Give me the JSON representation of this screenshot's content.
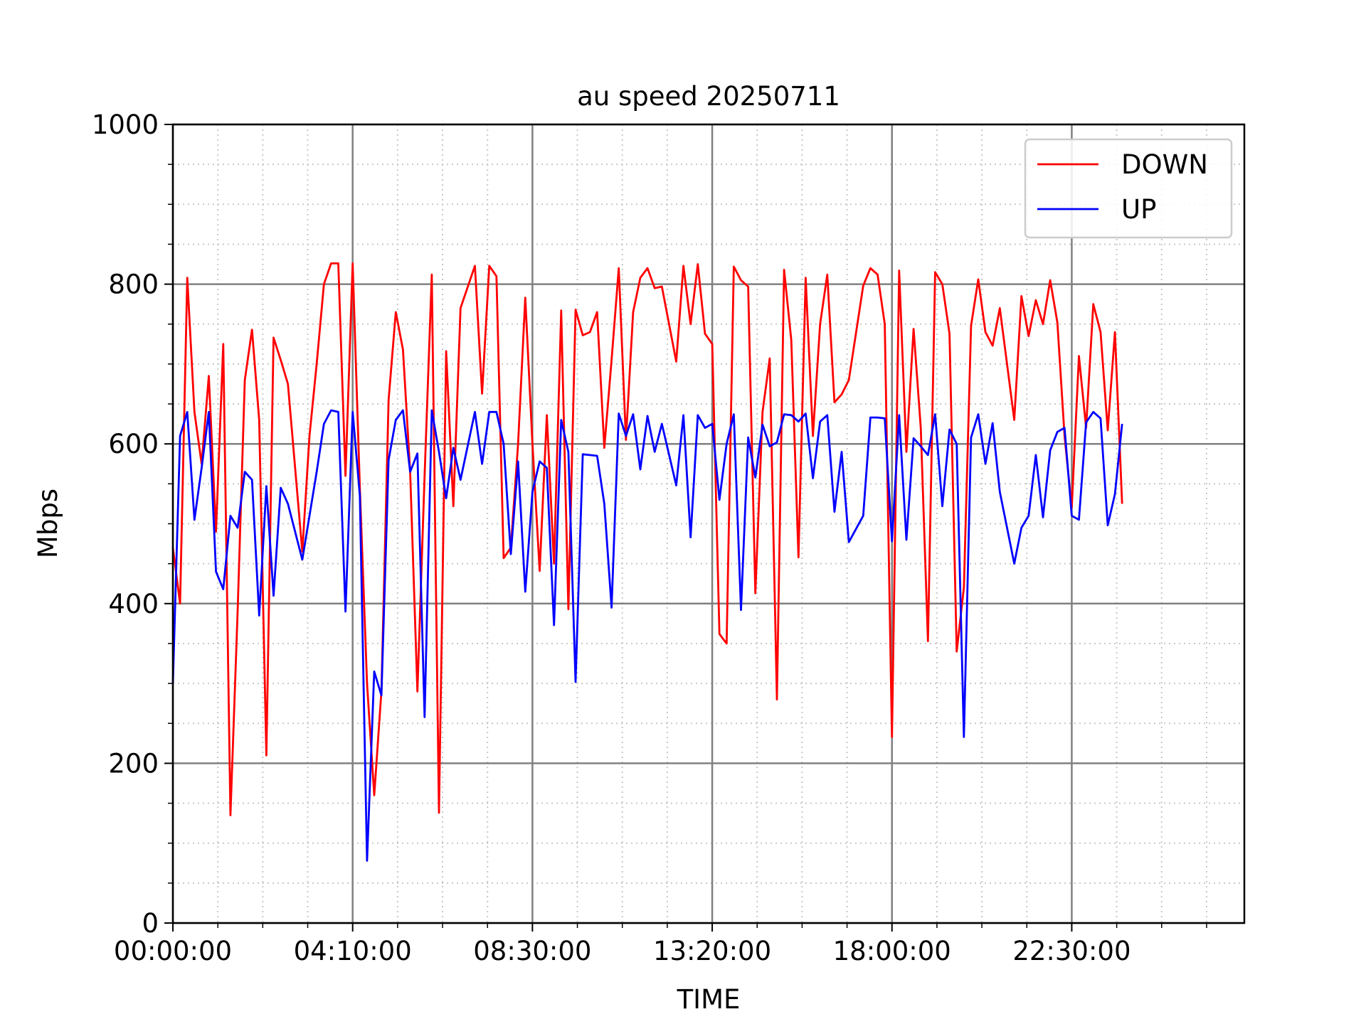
{
  "chart_data": {
    "type": "line",
    "title": "au speed 20250711",
    "xlabel": "TIME",
    "ylabel": "Mbps",
    "x": [
      0,
      1,
      2,
      3,
      4,
      5,
      6,
      7,
      8,
      9,
      10,
      11,
      12,
      13,
      14,
      15,
      16,
      18,
      19,
      20,
      21,
      22,
      23,
      24,
      25,
      26,
      27,
      28,
      29,
      30,
      31,
      32,
      33,
      34,
      35,
      36,
      37,
      38,
      39,
      40,
      42,
      43,
      44,
      45,
      46,
      47,
      48,
      49,
      50,
      51,
      52,
      53,
      54,
      55,
      56,
      57,
      58,
      59,
      60,
      61,
      62,
      63,
      64,
      65,
      66,
      67,
      68,
      70,
      71,
      72,
      73,
      74,
      75,
      76,
      77,
      78,
      79,
      80,
      81,
      82,
      83,
      84,
      85,
      86,
      87,
      88,
      89,
      90,
      91,
      92,
      93,
      94,
      96,
      97,
      98,
      99,
      100,
      101,
      102,
      103,
      104,
      105,
      106,
      107,
      108,
      109,
      110,
      111,
      112,
      113,
      114,
      115,
      117,
      118,
      119,
      120,
      121,
      122,
      123,
      124,
      125,
      126,
      127,
      128,
      129,
      130,
      131,
      132
    ],
    "series": [
      {
        "name": "DOWN",
        "color": "#ff0000",
        "values": [
          470,
          400,
          808,
          640,
          575,
          685,
          490,
          725,
          135,
          390,
          680,
          743,
          630,
          210,
          733,
          705,
          675,
          465,
          610,
          700,
          800,
          826,
          826,
          560,
          826,
          545,
          300,
          160,
          290,
          655,
          765,
          718,
          565,
          290,
          560,
          812,
          138,
          716,
          522,
          770,
          823,
          663,
          823,
          810,
          457,
          470,
          600,
          783,
          600,
          441,
          636,
          450,
          767,
          393,
          768,
          736,
          740,
          765,
          595,
          705,
          820,
          605,
          765,
          808,
          820,
          795,
          797,
          703,
          823,
          750,
          825,
          738,
          725,
          362,
          350,
          822,
          805,
          797,
          413,
          640,
          707,
          280,
          818,
          730,
          458,
          808,
          610,
          750,
          812,
          652,
          662,
          680,
          798,
          820,
          812,
          750,
          233,
          817,
          590,
          744,
          620,
          353,
          815,
          800,
          738,
          340,
          420,
          748,
          806,
          740,
          723,
          770,
          630,
          785,
          735,
          780,
          750,
          805,
          752,
          610,
          520,
          710,
          620,
          775,
          740,
          617,
          740,
          525
        ]
      },
      {
        "name": "UP",
        "color": "#0000ff",
        "values": [
          300,
          610,
          640,
          505,
          570,
          640,
          440,
          418,
          510,
          495,
          565,
          555,
          385,
          547,
          410,
          545,
          525,
          455,
          510,
          565,
          625,
          642,
          640,
          390,
          640,
          535,
          78,
          315,
          285,
          580,
          630,
          642,
          565,
          588,
          258,
          642,
          590,
          532,
          595,
          555,
          640,
          575,
          640,
          640,
          600,
          462,
          578,
          415,
          540,
          578,
          570,
          373,
          630,
          590,
          302,
          587,
          586,
          585,
          525,
          395,
          638,
          610,
          637,
          568,
          635,
          590,
          625,
          548,
          636,
          483,
          636,
          620,
          625,
          530,
          600,
          637,
          392,
          608,
          558,
          624,
          597,
          602,
          637,
          636,
          628,
          638,
          557,
          628,
          636,
          515,
          590,
          477,
          510,
          633,
          633,
          632,
          478,
          636,
          480,
          607,
          597,
          586,
          637,
          522,
          618,
          600,
          233,
          608,
          637,
          575,
          626,
          540,
          450,
          495,
          510,
          586,
          508,
          592,
          615,
          620,
          510,
          505,
          627,
          640,
          632,
          498,
          537,
          625
        ]
      }
    ],
    "xlim": [
      0,
      149
    ],
    "xticks": [
      {
        "value": 0,
        "label": "00:00:00"
      },
      {
        "value": 25,
        "label": "04:10:00"
      },
      {
        "value": 50,
        "label": "08:30:00"
      },
      {
        "value": 75,
        "label": "13:20:00"
      },
      {
        "value": 100,
        "label": "18:00:00"
      },
      {
        "value": 125,
        "label": "22:30:00"
      }
    ],
    "xminorticks": [
      6.25,
      12.5,
      18.75,
      31.25,
      37.5,
      43.75,
      56.25,
      62.5,
      68.75,
      81.25,
      87.5,
      93.75,
      106.25,
      112.5,
      118.75,
      131.25,
      137.5,
      143.75
    ],
    "ylim": [
      0,
      1000
    ],
    "yticks": [
      0,
      200,
      400,
      600,
      800,
      1000
    ],
    "yminorticks": [
      50,
      100,
      150,
      250,
      300,
      350,
      450,
      500,
      550,
      650,
      700,
      750,
      850,
      900,
      950
    ],
    "grid": true,
    "legend": "upper right"
  }
}
